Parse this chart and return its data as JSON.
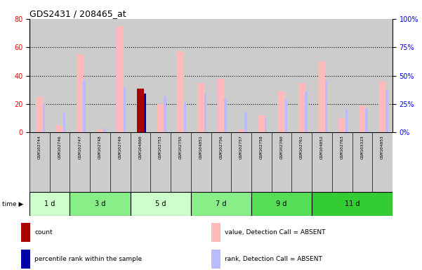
{
  "title": "GDS2431 / 208465_at",
  "samples": [
    "GSM102744",
    "GSM102746",
    "GSM102747",
    "GSM102748",
    "GSM102749",
    "GSM104060",
    "GSM102753",
    "GSM102755",
    "GSM104051",
    "GSM102756",
    "GSM102757",
    "GSM102758",
    "GSM102760",
    "GSM102761",
    "GSM104052",
    "GSM102763",
    "GSM103323",
    "GSM104053"
  ],
  "time_groups": [
    {
      "label": "1 d",
      "start": 0,
      "end": 2,
      "color": "#ccffcc"
    },
    {
      "label": "3 d",
      "start": 2,
      "end": 5,
      "color": "#88ee88"
    },
    {
      "label": "5 d",
      "start": 5,
      "end": 8,
      "color": "#ccffcc"
    },
    {
      "label": "7 d",
      "start": 8,
      "end": 11,
      "color": "#88ee88"
    },
    {
      "label": "9 d",
      "start": 11,
      "end": 14,
      "color": "#55dd55"
    },
    {
      "label": "11 d",
      "start": 14,
      "end": 18,
      "color": "#33cc33"
    }
  ],
  "value_absent": [
    25,
    5,
    55,
    2,
    75,
    20,
    20,
    57,
    35,
    38,
    2,
    12,
    29,
    35,
    50,
    10,
    19,
    36
  ],
  "rank_absent": [
    26,
    17,
    46,
    3,
    40,
    29,
    32,
    26,
    35,
    30,
    18,
    13,
    29,
    36,
    46,
    20,
    21,
    37
  ],
  "count_val": [
    null,
    null,
    null,
    null,
    null,
    31,
    null,
    null,
    null,
    null,
    null,
    null,
    null,
    null,
    null,
    null,
    null,
    null
  ],
  "count_rank": [
    null,
    null,
    null,
    null,
    null,
    34,
    null,
    null,
    null,
    null,
    null,
    null,
    null,
    null,
    null,
    null,
    null,
    null
  ],
  "ylim_left": [
    0,
    80
  ],
  "ylim_right": [
    0,
    100
  ],
  "yticks_left": [
    0,
    20,
    40,
    60,
    80
  ],
  "yticks_right": [
    0,
    25,
    50,
    75,
    100
  ],
  "value_absent_color": "#ffbbbb",
  "rank_absent_color": "#bbbbff",
  "count_color": "#aa0000",
  "count_rank_color": "#0000aa",
  "bg_sample": "#cccccc",
  "legend_items": [
    {
      "color": "#aa0000",
      "label": "count"
    },
    {
      "color": "#0000aa",
      "label": "percentile rank within the sample"
    },
    {
      "color": "#ffbbbb",
      "label": "value, Detection Call = ABSENT"
    },
    {
      "color": "#bbbbff",
      "label": "rank, Detection Call = ABSENT"
    }
  ]
}
